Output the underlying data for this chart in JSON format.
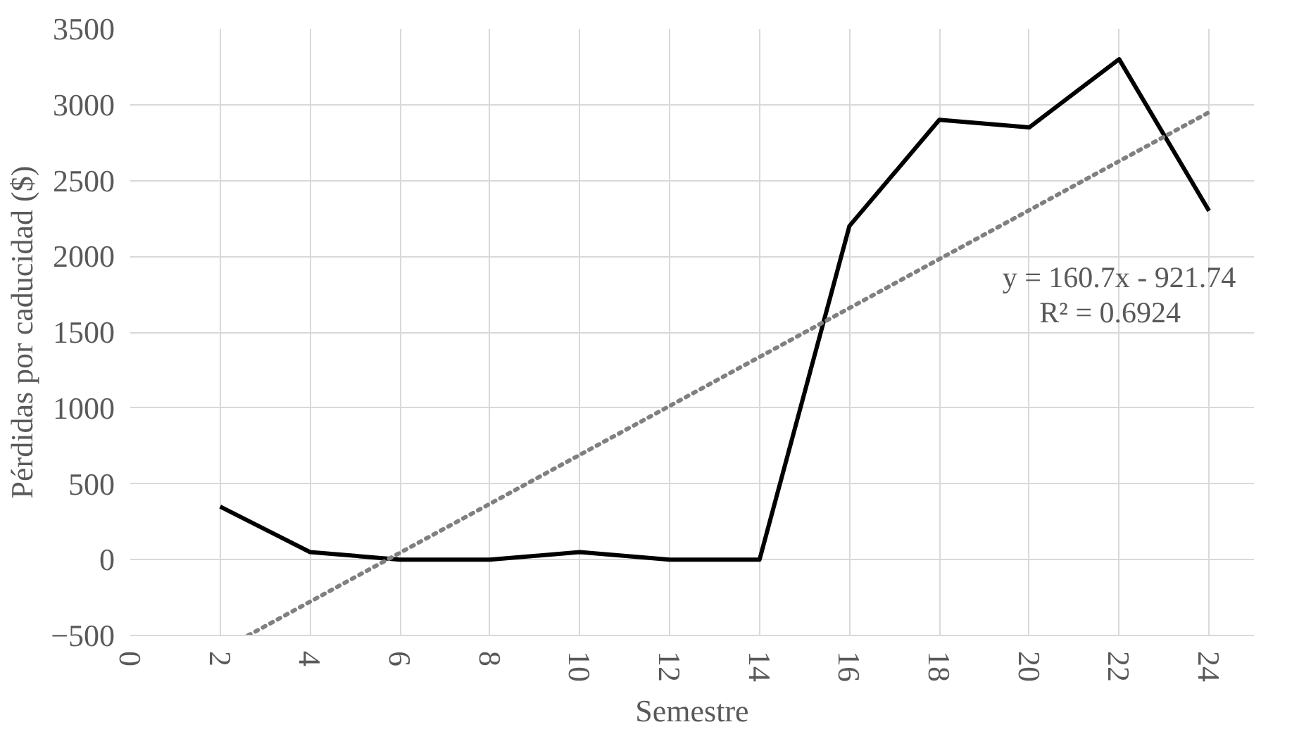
{
  "chart_data": {
    "type": "line",
    "xlabel": "Semestre",
    "ylabel": "Pérdidas por caducidad ($)",
    "x": [
      2,
      4,
      6,
      8,
      10,
      12,
      14,
      16,
      18,
      20,
      22,
      24
    ],
    "series": [
      {
        "color": "#000000",
        "values": [
          350,
          50,
          0,
          0,
          50,
          0,
          0,
          2200,
          2900,
          2850,
          3300,
          2300
        ],
        "line_style": "solid"
      },
      {
        "type": "line",
        "x": [
          2.62,
          24
        ],
        "values": [
          -500,
          2950
        ],
        "color": "#808080",
        "line_style": "dotted"
      }
    ],
    "xlim": [
      0,
      25
    ],
    "xticks": [
      0,
      2,
      4,
      6,
      8,
      10,
      12,
      14,
      16,
      18,
      20,
      22,
      24
    ],
    "ylim": [
      -500,
      3500
    ],
    "yticks": [
      -500,
      0,
      500,
      1000,
      1500,
      2000,
      2500,
      3000,
      3500
    ],
    "grid": true,
    "annotations": [
      "y = 160.7x - 921.74",
      "R² = 0.6924"
    ]
  }
}
